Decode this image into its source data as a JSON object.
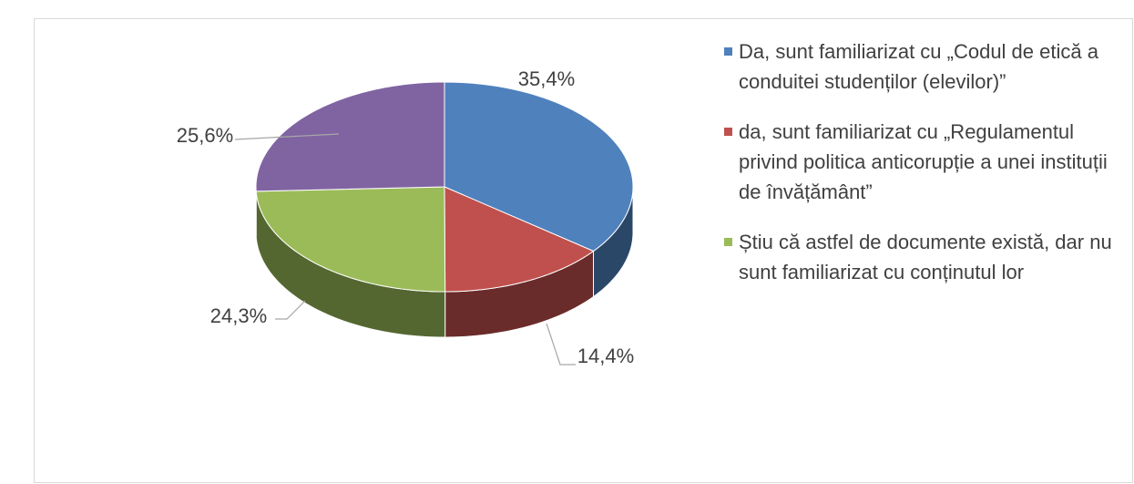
{
  "chart_data": {
    "type": "pie",
    "three_d": true,
    "categories": [
      "Da, sunt familiarizat cu „Codul de etică a conduitei studenților (elevilor)”",
      "da, sunt familiarizat cu „Regulamentul privind politica anticorupție a unei instituții de învățământ”",
      "Știu că astfel de documente există, dar nu sunt familiarizat cu conținutul lor",
      null
    ],
    "values": [
      35.4,
      14.4,
      24.3,
      25.6
    ],
    "value_labels": [
      "35,4%",
      "14,4%",
      "24,3%",
      "25,6%"
    ],
    "colors": [
      "#4f81bd",
      "#c0504d",
      "#9bbb59",
      "#8064a2"
    ],
    "legend": "right"
  }
}
